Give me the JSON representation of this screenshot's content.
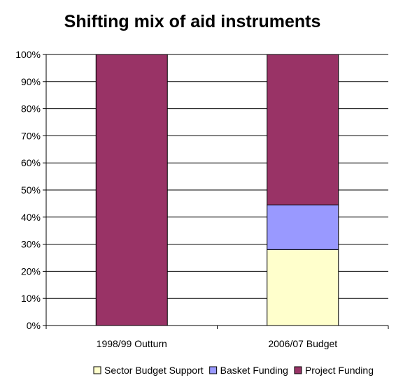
{
  "chart_data": {
    "type": "bar",
    "stacked": true,
    "percent": true,
    "title": "Shifting mix of aid instruments",
    "xlabel": "",
    "ylabel": "",
    "categories": [
      "1998/99 Outturn",
      "2006/07 Budget"
    ],
    "series": [
      {
        "name": "Sector Budget Support",
        "values": [
          0,
          28
        ],
        "color": "#ffffcc"
      },
      {
        "name": "Basket Funding",
        "values": [
          0,
          16.5
        ],
        "color": "#9999ff"
      },
      {
        "name": "Project Funding",
        "values": [
          100,
          55.5
        ],
        "color": "#993366"
      }
    ],
    "ylim": [
      0,
      100
    ],
    "yticks": [
      0,
      10,
      20,
      30,
      40,
      50,
      60,
      70,
      80,
      90,
      100
    ],
    "ytick_labels": [
      "0%",
      "10%",
      "20%",
      "30%",
      "40%",
      "50%",
      "60%",
      "70%",
      "80%",
      "90%",
      "100%"
    ],
    "grid": true,
    "legend": "bottom"
  }
}
